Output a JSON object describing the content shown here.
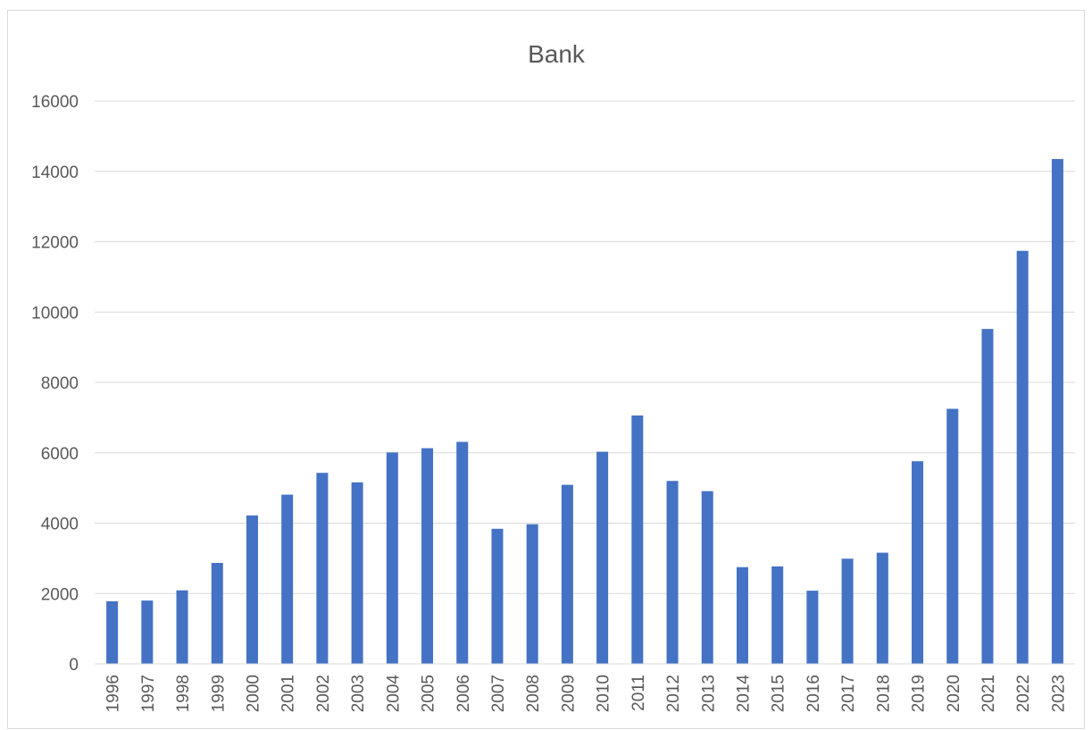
{
  "chart_data": {
    "type": "bar",
    "title": "Bank",
    "xlabel": "",
    "ylabel": "",
    "categories": [
      "1996",
      "1997",
      "1998",
      "1999",
      "2000",
      "2001",
      "2002",
      "2003",
      "2004",
      "2005",
      "2006",
      "2007",
      "2008",
      "2009",
      "2010",
      "2011",
      "2012",
      "2013",
      "2014",
      "2015",
      "2016",
      "2017",
      "2018",
      "2019",
      "2020",
      "2021",
      "2022",
      "2023"
    ],
    "values": [
      1780,
      1800,
      2090,
      2870,
      4220,
      4810,
      5430,
      5160,
      6010,
      6130,
      6310,
      3840,
      3970,
      5090,
      6030,
      7060,
      5200,
      4910,
      2750,
      2770,
      2080,
      2990,
      3160,
      5760,
      7250,
      9520,
      11740,
      14350
    ],
    "ylim": [
      0,
      16000
    ],
    "yticks": [
      0,
      2000,
      4000,
      6000,
      8000,
      10000,
      12000,
      14000,
      16000
    ],
    "grid": true,
    "legend": "none",
    "bar_color": "#4472C4"
  }
}
